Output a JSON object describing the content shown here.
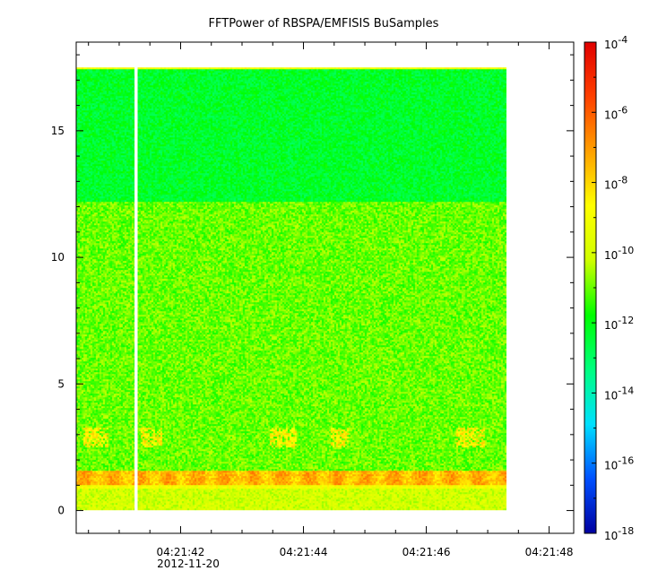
{
  "chart_data": {
    "type": "heatmap",
    "title": "FFTPower of RBSPA/EMFISIS  BuSamples",
    "x_axis": {
      "kind": "time",
      "range": [
        "04:21:40.3",
        "04:21:48.4"
      ],
      "ticks": [
        "04:21:42",
        "04:21:44",
        "04:21:46",
        "04:21:48"
      ],
      "date_label": "2012-11-20"
    },
    "y_axis": {
      "range": [
        -0.9,
        18.5
      ],
      "ticks": [
        0,
        5,
        10,
        15
      ]
    },
    "colorbar": {
      "scale": "log",
      "range": [
        1e-18,
        0.0001
      ],
      "ticks": [
        {
          "base": "10",
          "exp": "-4"
        },
        {
          "base": "10",
          "exp": "-6"
        },
        {
          "base": "10",
          "exp": "-8"
        },
        {
          "base": "10",
          "exp": "-10"
        },
        {
          "base": "10",
          "exp": "-12"
        },
        {
          "base": "10",
          "exp": "-14"
        },
        {
          "base": "10",
          "exp": "-16"
        },
        {
          "base": "10",
          "exp": "-18"
        }
      ],
      "colors": [
        "#0000a0",
        "#0050ff",
        "#00e0ff",
        "#00ff80",
        "#00ff00",
        "#d0ff00",
        "#ffff00",
        "#ffa000",
        "#ff4000",
        "#e00000"
      ]
    },
    "data_extent": {
      "t_start": "04:21:40.3",
      "t_end": "04:21:47.3",
      "f_min": 0,
      "f_max": 17.5
    },
    "data_gap": {
      "t_start": "04:21:41.25",
      "t_end": "04:21:41.30"
    },
    "bands": [
      {
        "name": "strong line",
        "f_low": 1.0,
        "f_high": 1.6,
        "log_power": -7.5
      },
      {
        "name": "lower band",
        "f_low": 0,
        "f_high": 0.9,
        "log_power": -10
      },
      {
        "name": "broadband",
        "f_low": 1.6,
        "f_high": 12.2,
        "log_power": -11
      },
      {
        "name": "upper band",
        "f_low": 12.2,
        "f_high": 17.5,
        "log_power": -12.3
      },
      {
        "name": "bursts",
        "f_low": 2.5,
        "f_high": 3.3,
        "log_power": -9
      }
    ]
  }
}
